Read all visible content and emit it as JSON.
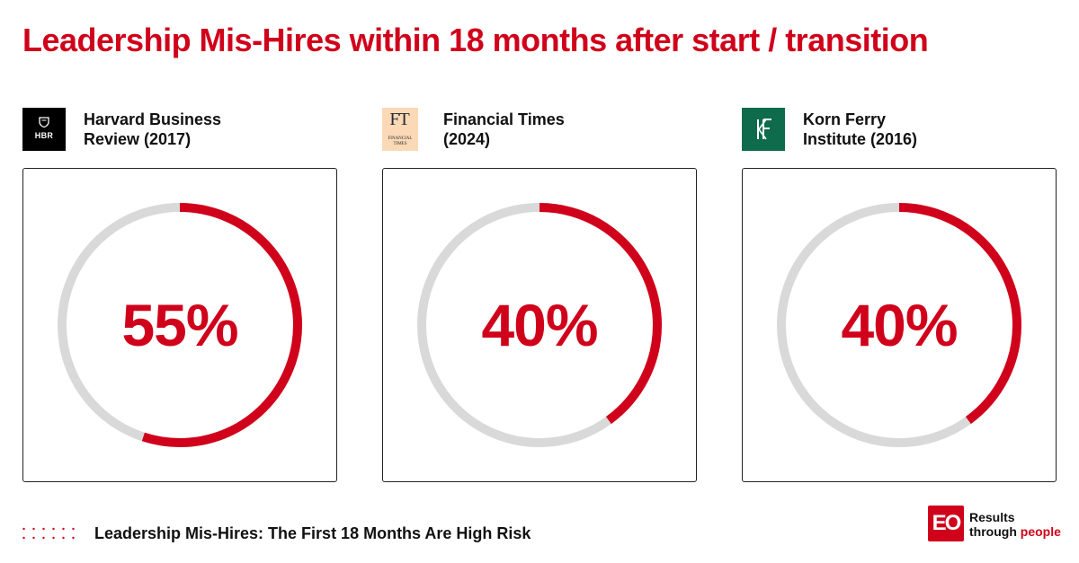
{
  "title": "Leadership Mis-Hires within 18 months after start / transition",
  "colors": {
    "accent": "#d0021b",
    "track": "#d9d9d9"
  },
  "sources": [
    {
      "name_line1": "Harvard Business",
      "name_line2": "Review (2017)",
      "logo_text": "HBR",
      "logo_icon": "shield-icon"
    },
    {
      "name_line1": "Financial Times",
      "name_line2": "(2024)",
      "logo_text": "FT",
      "logo_small": "FINANCIAL TIMES"
    },
    {
      "name_line1": "Korn Ferry",
      "name_line2": "Institute (2016)",
      "logo_text": "KF"
    }
  ],
  "chart_data": [
    {
      "type": "pie",
      "title": "Harvard Business Review (2017)",
      "values": [
        55,
        45
      ],
      "display": "55%"
    },
    {
      "type": "pie",
      "title": "Financial Times (2024)",
      "values": [
        40,
        60
      ],
      "display": "40%"
    },
    {
      "type": "pie",
      "title": "Korn Ferry Institute (2016)",
      "values": [
        40,
        60
      ],
      "display": "40%"
    }
  ],
  "footer": {
    "text": "Leadership Mis-Hires: The First 18 Months Are High Risk",
    "logo_text": "EO",
    "tagline_line1": "Results",
    "tagline_line2_a": "through ",
    "tagline_line2_b": "people"
  }
}
